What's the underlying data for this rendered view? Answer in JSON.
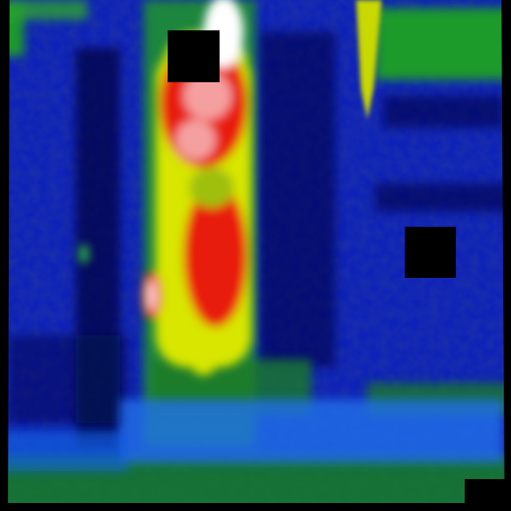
{
  "image": {
    "kind": "thermal camera frame, false-colour palette",
    "palette": {
      "coldest": "#05083a",
      "cold": "#0a1aa8",
      "cool": "#1560e0",
      "mid": "#1f9a2a",
      "warm": "#d8e600",
      "hot": "#e81a10",
      "hottest": "#ffffff"
    }
  }
}
